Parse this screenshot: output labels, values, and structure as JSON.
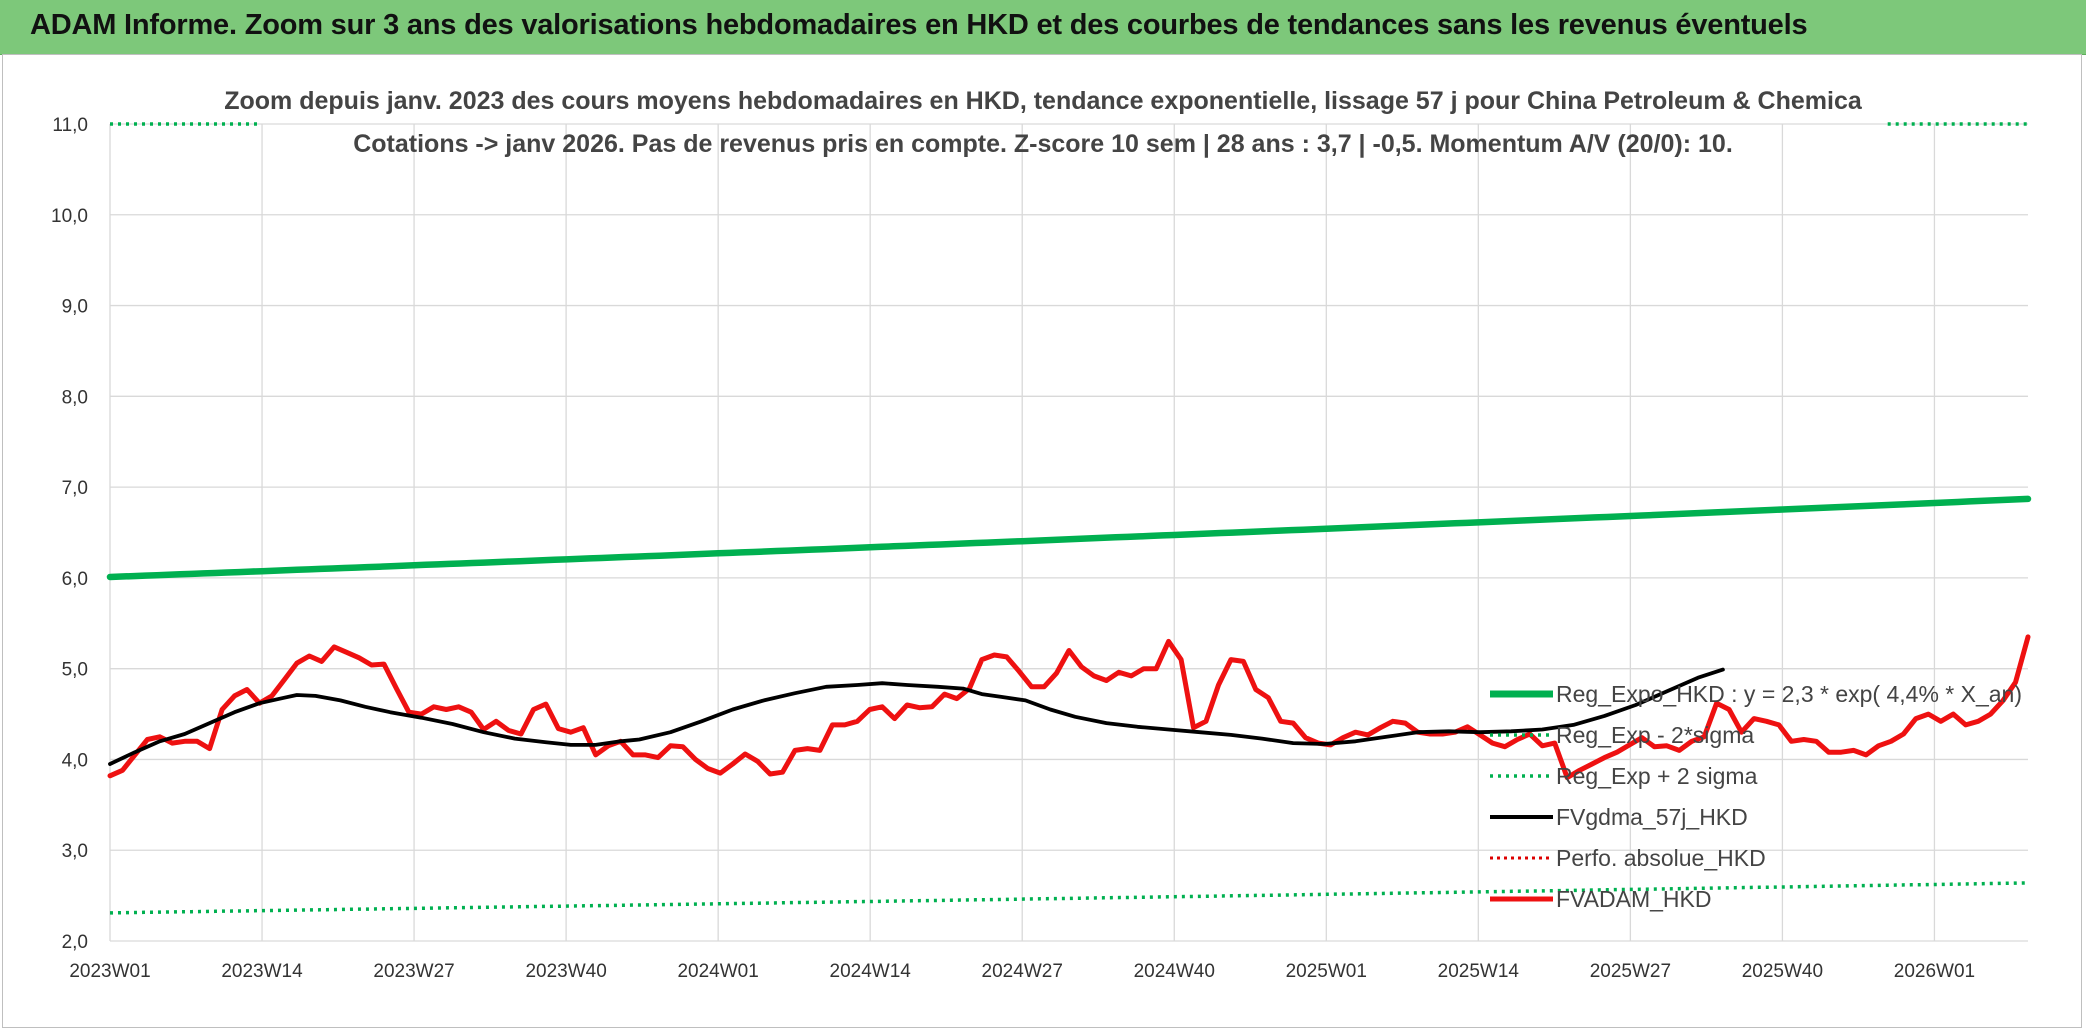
{
  "banner": {
    "text": "ADAM Informe. Zoom sur 3 ans des valorisations hebdomadaires en HKD et des courbes de tendances sans les revenus éventuels"
  },
  "colors": {
    "banner": "#7dc87a",
    "reg_expo": "#00b050",
    "fvgdma": "#000000",
    "fvadam": "#ee1111",
    "perfo": "#dd0000",
    "grid": "#d9d9d9"
  },
  "chart_data": {
    "type": "line",
    "title": "Zoom depuis janv. 2023 des cours moyens hebdomadaires en HKD, tendance exponentielle, lissage 57 j pour China Petroleum & Chemica",
    "subtitle": "Cotations -> janv 2026. Pas de revenus pris en compte. Z-score 10 sem | 28 ans : 3,7 | -0,5. Momentum A/V (20/0): 10.",
    "xlabel": "",
    "ylabel": "",
    "ylim": [
      2.0,
      11.0
    ],
    "yticks": [
      "2,0",
      "3,0",
      "4,0",
      "5,0",
      "6,0",
      "7,0",
      "8,0",
      "9,0",
      "10,0",
      "11,0"
    ],
    "x_tick_labels": [
      "2023W01",
      "2023W14",
      "2023W27",
      "2023W40",
      "2024W01",
      "2024W14",
      "2024W27",
      "2024W40",
      "2025W01",
      "2025W14",
      "2025W27",
      "2025W40",
      "2026W01"
    ],
    "n_weeks": 165,
    "grid": true,
    "legend_position": "right",
    "series": [
      {
        "name": "Reg_Expo_HKD : y = 2,3 * exp( 4,4% * X_an)",
        "style": "thick",
        "color": "#00b050",
        "start": 6.01,
        "end": 6.87
      },
      {
        "name": "Reg_Exp - 2*sigma",
        "style": "dotted",
        "color": "#00b050",
        "start": 2.31,
        "end": 2.64
      },
      {
        "name": "Reg_Exp + 2 sigma",
        "style": "dotted",
        "color": "#00b050",
        "start": 11.0,
        "end": 11.0,
        "visible_ranges": [
          [
            0,
            13
          ],
          [
            152,
            164
          ]
        ]
      },
      {
        "name": "FVgdma_57j_HKD",
        "style": "solid",
        "color": "#000000",
        "points": [
          [
            0,
            3.95
          ],
          [
            4,
            4.08
          ],
          [
            8,
            4.2
          ],
          [
            12,
            4.28
          ],
          [
            16,
            4.4
          ],
          [
            20,
            4.52
          ],
          [
            24,
            4.62
          ],
          [
            28,
            4.68
          ],
          [
            30,
            4.71
          ],
          [
            33,
            4.7
          ],
          [
            37,
            4.65
          ],
          [
            41,
            4.58
          ],
          [
            45,
            4.52
          ],
          [
            50,
            4.46
          ],
          [
            55,
            4.39
          ],
          [
            60,
            4.3
          ],
          [
            65,
            4.23
          ],
          [
            70,
            4.19
          ],
          [
            74,
            4.16
          ],
          [
            78,
            4.16
          ],
          [
            82,
            4.2
          ],
          [
            85,
            4.22
          ],
          [
            90,
            4.3
          ],
          [
            95,
            4.42
          ],
          [
            100,
            4.55
          ],
          [
            105,
            4.65
          ],
          [
            110,
            4.73
          ],
          [
            115,
            4.8
          ],
          [
            120,
            4.82
          ],
          [
            124,
            4.84
          ],
          [
            128,
            4.82
          ],
          [
            133,
            4.8
          ],
          [
            137,
            4.78
          ],
          [
            140,
            4.72
          ],
          [
            143,
            4.69
          ],
          [
            147,
            4.65
          ],
          [
            151,
            4.55
          ],
          [
            155,
            4.47
          ],
          [
            160,
            4.4
          ],
          [
            165,
            4.36
          ],
          [
            170,
            4.33
          ],
          [
            175,
            4.3
          ],
          [
            180,
            4.27
          ],
          [
            185,
            4.23
          ],
          [
            190,
            4.18
          ],
          [
            195,
            4.17
          ],
          [
            200,
            4.2
          ],
          [
            205,
            4.25
          ],
          [
            210,
            4.3
          ],
          [
            215,
            4.31
          ],
          [
            220,
            4.3
          ],
          [
            225,
            4.31
          ],
          [
            230,
            4.33
          ],
          [
            235,
            4.38
          ],
          [
            240,
            4.48
          ],
          [
            245,
            4.6
          ],
          [
            250,
            4.75
          ],
          [
            255,
            4.9
          ],
          [
            259,
            4.99
          ]
        ]
      },
      {
        "name": "Perfo. absolue_HKD",
        "style": "dotted",
        "color": "#dd0000"
      },
      {
        "name": "FVADAM_HKD",
        "style": "thick",
        "color": "#ee1111",
        "points": [
          [
            0,
            3.82
          ],
          [
            2,
            3.88
          ],
          [
            4,
            4.05
          ],
          [
            6,
            4.22
          ],
          [
            8,
            4.25
          ],
          [
            10,
            4.18
          ],
          [
            12,
            4.2
          ],
          [
            14,
            4.2
          ],
          [
            16,
            4.12
          ],
          [
            18,
            4.55
          ],
          [
            20,
            4.7
          ],
          [
            22,
            4.77
          ],
          [
            24,
            4.62
          ],
          [
            26,
            4.7
          ],
          [
            28,
            4.88
          ],
          [
            30,
            5.06
          ],
          [
            32,
            5.14
          ],
          [
            34,
            5.08
          ],
          [
            36,
            5.24
          ],
          [
            38,
            5.18
          ],
          [
            40,
            5.12
          ],
          [
            42,
            5.04
          ],
          [
            44,
            5.05
          ],
          [
            46,
            4.78
          ],
          [
            48,
            4.52
          ],
          [
            50,
            4.5
          ],
          [
            52,
            4.58
          ],
          [
            54,
            4.55
          ],
          [
            56,
            4.58
          ],
          [
            58,
            4.52
          ],
          [
            60,
            4.33
          ],
          [
            62,
            4.42
          ],
          [
            64,
            4.32
          ],
          [
            66,
            4.28
          ],
          [
            68,
            4.55
          ],
          [
            70,
            4.61
          ],
          [
            72,
            4.34
          ],
          [
            74,
            4.3
          ],
          [
            76,
            4.35
          ],
          [
            78,
            4.05
          ],
          [
            80,
            4.15
          ],
          [
            82,
            4.2
          ],
          [
            84,
            4.05
          ],
          [
            86,
            4.05
          ],
          [
            88,
            4.02
          ],
          [
            90,
            4.15
          ],
          [
            92,
            4.14
          ],
          [
            94,
            4.0
          ],
          [
            96,
            3.9
          ],
          [
            98,
            3.85
          ],
          [
            100,
            3.95
          ],
          [
            102,
            4.06
          ],
          [
            104,
            3.98
          ],
          [
            106,
            3.84
          ],
          [
            108,
            3.86
          ],
          [
            110,
            4.1
          ],
          [
            112,
            4.12
          ],
          [
            114,
            4.1
          ],
          [
            116,
            4.38
          ],
          [
            118,
            4.38
          ],
          [
            120,
            4.42
          ],
          [
            122,
            4.55
          ],
          [
            124,
            4.58
          ],
          [
            126,
            4.45
          ],
          [
            128,
            4.6
          ],
          [
            130,
            4.57
          ],
          [
            132,
            4.58
          ],
          [
            134,
            4.72
          ],
          [
            136,
            4.67
          ],
          [
            138,
            4.78
          ],
          [
            140,
            5.1
          ],
          [
            142,
            5.15
          ],
          [
            144,
            5.13
          ],
          [
            146,
            4.97
          ],
          [
            148,
            4.8
          ],
          [
            150,
            4.8
          ],
          [
            152,
            4.95
          ],
          [
            154,
            5.2
          ],
          [
            156,
            5.02
          ],
          [
            158,
            4.92
          ],
          [
            160,
            4.87
          ],
          [
            162,
            4.96
          ],
          [
            164,
            4.92
          ],
          [
            166,
            5.0
          ],
          [
            168,
            5.0
          ],
          [
            170,
            5.3
          ],
          [
            172,
            5.1
          ],
          [
            174,
            4.35
          ],
          [
            176,
            4.42
          ],
          [
            178,
            4.82
          ],
          [
            180,
            5.1
          ],
          [
            182,
            5.08
          ],
          [
            184,
            4.77
          ],
          [
            186,
            4.68
          ],
          [
            188,
            4.42
          ],
          [
            190,
            4.4
          ],
          [
            192,
            4.24
          ],
          [
            194,
            4.18
          ],
          [
            196,
            4.16
          ],
          [
            198,
            4.24
          ],
          [
            200,
            4.3
          ],
          [
            202,
            4.27
          ],
          [
            204,
            4.35
          ],
          [
            206,
            4.42
          ],
          [
            208,
            4.4
          ],
          [
            210,
            4.3
          ],
          [
            212,
            4.28
          ],
          [
            214,
            4.28
          ],
          [
            216,
            4.3
          ],
          [
            218,
            4.36
          ],
          [
            220,
            4.27
          ],
          [
            222,
            4.18
          ],
          [
            224,
            4.14
          ],
          [
            226,
            4.22
          ],
          [
            228,
            4.28
          ],
          [
            230,
            4.15
          ],
          [
            232,
            4.18
          ],
          [
            234,
            3.8
          ],
          [
            236,
            3.88
          ],
          [
            238,
            3.95
          ],
          [
            240,
            4.02
          ],
          [
            242,
            4.08
          ],
          [
            244,
            4.16
          ],
          [
            246,
            4.24
          ],
          [
            248,
            4.14
          ],
          [
            250,
            4.15
          ],
          [
            252,
            4.1
          ],
          [
            254,
            4.2
          ],
          [
            256,
            4.25
          ],
          [
            258,
            4.62
          ],
          [
            260,
            4.55
          ],
          [
            262,
            4.3
          ],
          [
            264,
            4.45
          ],
          [
            266,
            4.42
          ],
          [
            268,
            4.38
          ],
          [
            270,
            4.2
          ],
          [
            272,
            4.22
          ],
          [
            274,
            4.2
          ],
          [
            276,
            4.08
          ],
          [
            278,
            4.08
          ],
          [
            280,
            4.1
          ],
          [
            282,
            4.05
          ],
          [
            284,
            4.15
          ],
          [
            286,
            4.2
          ],
          [
            288,
            4.28
          ],
          [
            290,
            4.45
          ],
          [
            292,
            4.5
          ],
          [
            294,
            4.42
          ],
          [
            296,
            4.5
          ],
          [
            298,
            4.38
          ],
          [
            300,
            4.42
          ],
          [
            302,
            4.5
          ],
          [
            304,
            4.65
          ],
          [
            306,
            4.85
          ],
          [
            308,
            5.35
          ]
        ]
      }
    ]
  }
}
